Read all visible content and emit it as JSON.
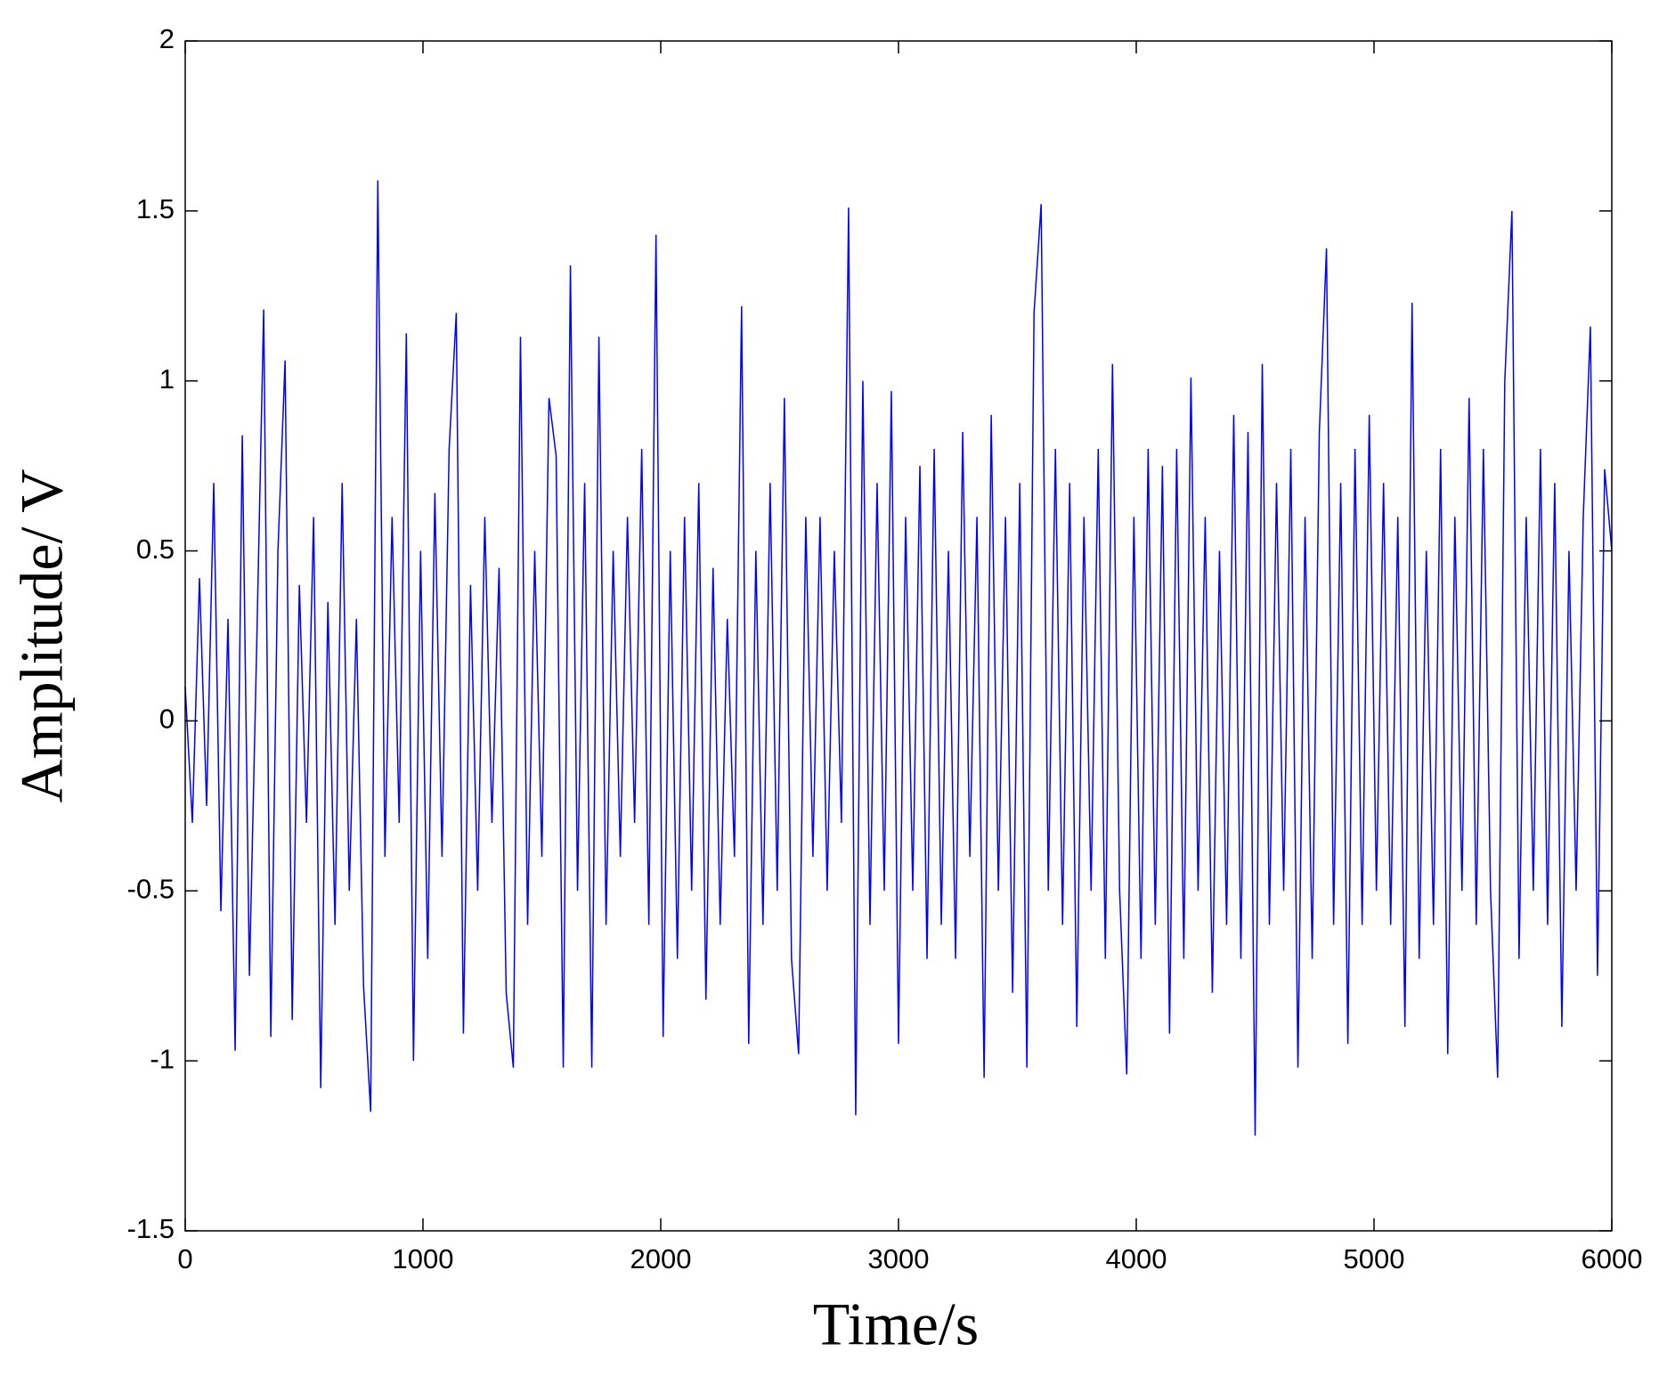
{
  "chart_data": {
    "type": "line",
    "x_label": "Time/s",
    "y_label": "Amplitude/ V",
    "xlim": [
      0,
      6000
    ],
    "xticks": [
      0,
      1000,
      2000,
      3000,
      4000,
      5000,
      6000
    ],
    "ylim": [
      -1.5,
      2
    ],
    "yticks": [
      -1.5,
      -1,
      -0.5,
      0,
      0.5,
      1,
      1.5,
      2
    ],
    "x": [
      0,
      30,
      60,
      90,
      120,
      150,
      180,
      210,
      240,
      270,
      300,
      330,
      360,
      390,
      420,
      450,
      480,
      510,
      540,
      570,
      600,
      630,
      660,
      690,
      720,
      750,
      780,
      810,
      840,
      870,
      900,
      930,
      960,
      990,
      1020,
      1050,
      1080,
      1110,
      1140,
      1170,
      1200,
      1230,
      1260,
      1290,
      1320,
      1350,
      1380,
      1410,
      1440,
      1470,
      1500,
      1530,
      1560,
      1590,
      1620,
      1650,
      1680,
      1710,
      1740,
      1770,
      1800,
      1830,
      1860,
      1890,
      1920,
      1950,
      1980,
      2010,
      2040,
      2070,
      2100,
      2130,
      2160,
      2190,
      2220,
      2250,
      2280,
      2310,
      2340,
      2370,
      2400,
      2430,
      2460,
      2490,
      2520,
      2550,
      2580,
      2610,
      2640,
      2670,
      2700,
      2730,
      2760,
      2790,
      2820,
      2850,
      2880,
      2910,
      2940,
      2970,
      3000,
      3030,
      3060,
      3090,
      3120,
      3150,
      3180,
      3210,
      3240,
      3270,
      3300,
      3330,
      3360,
      3390,
      3420,
      3450,
      3480,
      3510,
      3540,
      3570,
      3600,
      3630,
      3660,
      3690,
      3720,
      3750,
      3780,
      3810,
      3840,
      3870,
      3900,
      3930,
      3960,
      3990,
      4020,
      4050,
      4080,
      4110,
      4140,
      4170,
      4200,
      4230,
      4260,
      4290,
      4320,
      4350,
      4380,
      4410,
      4440,
      4470,
      4500,
      4530,
      4560,
      4590,
      4620,
      4650,
      4680,
      4710,
      4740,
      4770,
      4800,
      4830,
      4860,
      4890,
      4920,
      4950,
      4980,
      5010,
      5040,
      5070,
      5100,
      5130,
      5160,
      5190,
      5220,
      5250,
      5280,
      5310,
      5340,
      5370,
      5400,
      5430,
      5460,
      5490,
      5520,
      5550,
      5580,
      5610,
      5640,
      5670,
      5700,
      5730,
      5760,
      5790,
      5820,
      5850,
      5880,
      5910,
      5940,
      5970,
      6000
    ],
    "series": [
      {
        "color": "#0000ff",
        "values": [
          0.1,
          -0.3,
          0.42,
          -0.25,
          0.7,
          -0.56,
          0.3,
          -0.97,
          0.84,
          -0.75,
          0.2,
          1.21,
          -0.93,
          0.5,
          1.06,
          -0.88,
          0.4,
          -0.3,
          0.6,
          -1.08,
          0.35,
          -0.6,
          0.7,
          -0.5,
          0.3,
          -0.78,
          -1.15,
          1.59,
          -0.4,
          0.6,
          -0.3,
          1.14,
          -1.0,
          0.5,
          -0.7,
          0.67,
          -0.4,
          0.8,
          1.2,
          -0.92,
          0.4,
          -0.5,
          0.6,
          -0.3,
          0.45,
          -0.8,
          -1.02,
          1.13,
          -0.6,
          0.5,
          -0.4,
          0.95,
          0.78,
          -1.02,
          1.34,
          -0.5,
          0.7,
          -1.02,
          1.13,
          -0.6,
          0.5,
          -0.4,
          0.6,
          -0.3,
          0.8,
          -0.6,
          1.43,
          -0.93,
          0.5,
          -0.7,
          0.6,
          -0.5,
          0.7,
          -0.82,
          0.45,
          -0.6,
          0.3,
          -0.4,
          1.22,
          -0.95,
          0.5,
          -0.6,
          0.7,
          -0.5,
          0.95,
          -0.7,
          -0.98,
          0.6,
          -0.4,
          0.6,
          -0.5,
          0.5,
          -0.3,
          1.51,
          -1.16,
          1.0,
          -0.6,
          0.7,
          -0.5,
          0.97,
          -0.95,
          0.6,
          -0.5,
          0.75,
          -0.7,
          0.8,
          -0.6,
          0.5,
          -0.7,
          0.85,
          -0.4,
          0.6,
          -1.05,
          0.9,
          -0.5,
          0.6,
          -0.8,
          0.7,
          -1.02,
          1.2,
          1.52,
          -0.5,
          0.8,
          -0.6,
          0.7,
          -0.9,
          0.6,
          -0.5,
          0.8,
          -0.7,
          1.05,
          -0.5,
          -1.04,
          0.6,
          -0.7,
          0.8,
          -0.6,
          0.75,
          -0.92,
          0.8,
          -0.7,
          1.01,
          -0.5,
          0.6,
          -0.8,
          0.5,
          -0.6,
          0.9,
          -0.7,
          0.85,
          -1.22,
          1.05,
          -0.6,
          0.7,
          -0.5,
          0.8,
          -1.02,
          0.6,
          -0.7,
          0.85,
          1.39,
          -0.6,
          0.7,
          -0.95,
          0.8,
          -0.6,
          0.9,
          -0.5,
          0.7,
          -0.6,
          0.6,
          -0.9,
          1.23,
          -0.7,
          0.5,
          -0.6,
          0.8,
          -0.98,
          0.6,
          -0.5,
          0.95,
          -0.6,
          0.8,
          -0.5,
          -1.05,
          1.0,
          1.5,
          -0.7,
          0.6,
          -0.5,
          0.8,
          -0.6,
          0.7,
          -0.9,
          0.5,
          -0.5,
          0.6,
          1.16,
          -0.75,
          0.74,
          0.5
        ]
      }
    ],
    "box": true,
    "grid": false
  }
}
